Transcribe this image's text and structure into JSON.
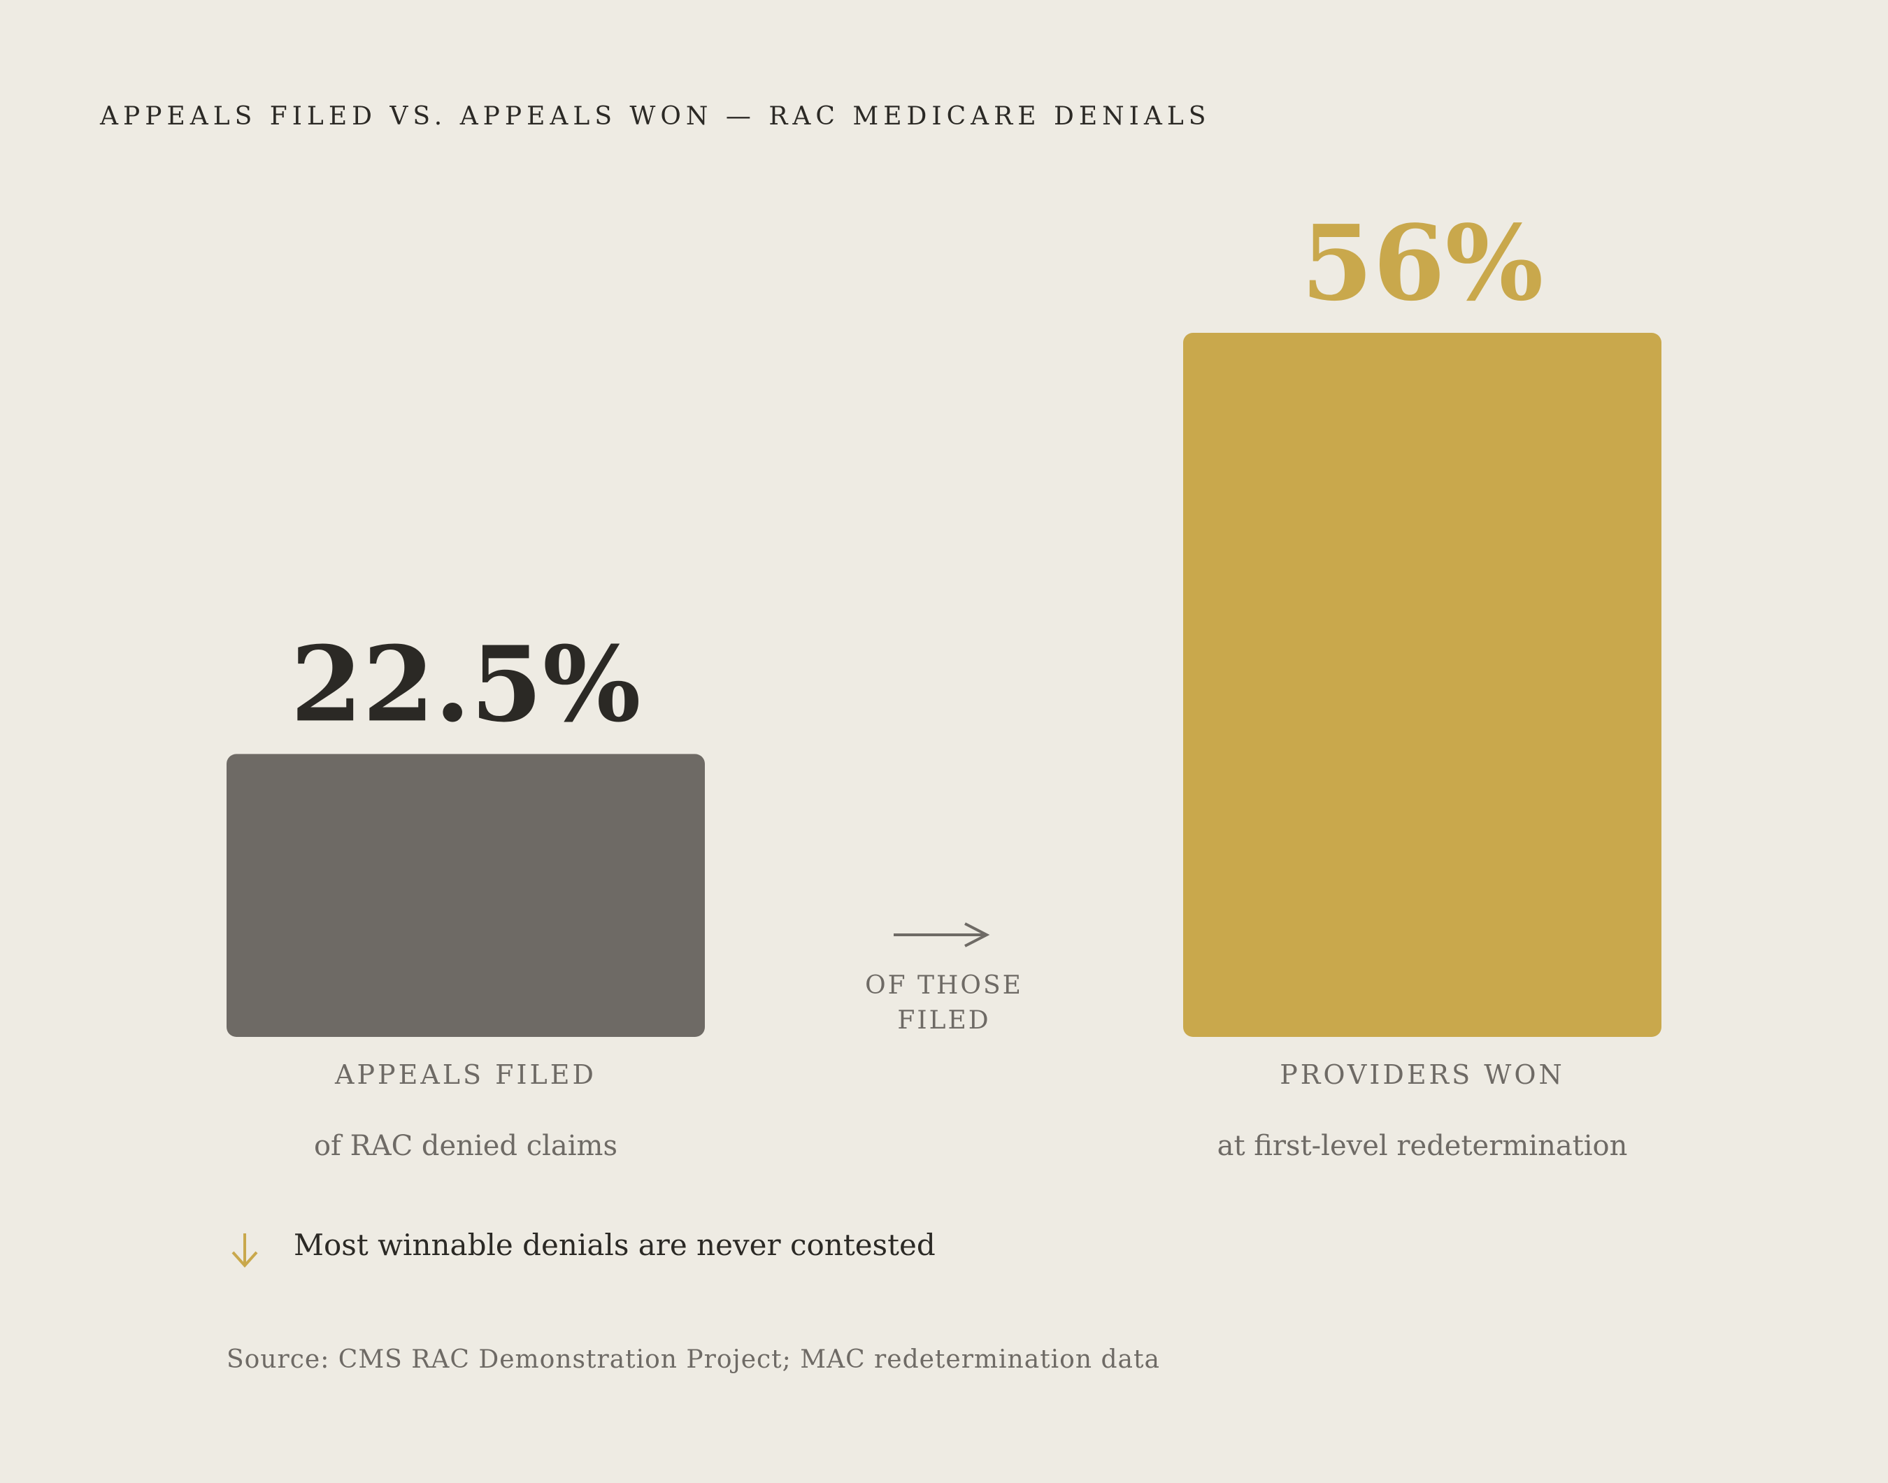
{
  "title": "APPEALS FILED VS. APPEALS WON — RAC MEDICARE DENIALS",
  "chart_data": {
    "type": "bar",
    "title": "APPEALS FILED VS. APPEALS WON — RAC MEDICARE DENIALS",
    "categories": [
      "APPEALS FILED",
      "PROVIDERS WON"
    ],
    "values": [
      22.5,
      56
    ],
    "value_labels": [
      "22.5%",
      "56%"
    ],
    "sublabels": [
      "of RAC denied claims",
      "at first-level redetermination"
    ],
    "unit": "%",
    "ylim": [
      0,
      56
    ],
    "grid": false,
    "connector_label": "OF THOSE FILED",
    "colors": [
      "#6e6a65",
      "#c9a84c"
    ],
    "value_label_colors": [
      "#2b2925",
      "#c9a84c"
    ]
  },
  "takeaway": {
    "icon": "arrow-down-icon",
    "text": "Most winnable denials are never contested"
  },
  "source": "Source: CMS RAC Demonstration Project; MAC redetermination data",
  "colors": {
    "background": "#eeebe3",
    "text_dark": "#2b2925",
    "text_muted": "#6e6a65",
    "accent": "#c9a84c"
  }
}
